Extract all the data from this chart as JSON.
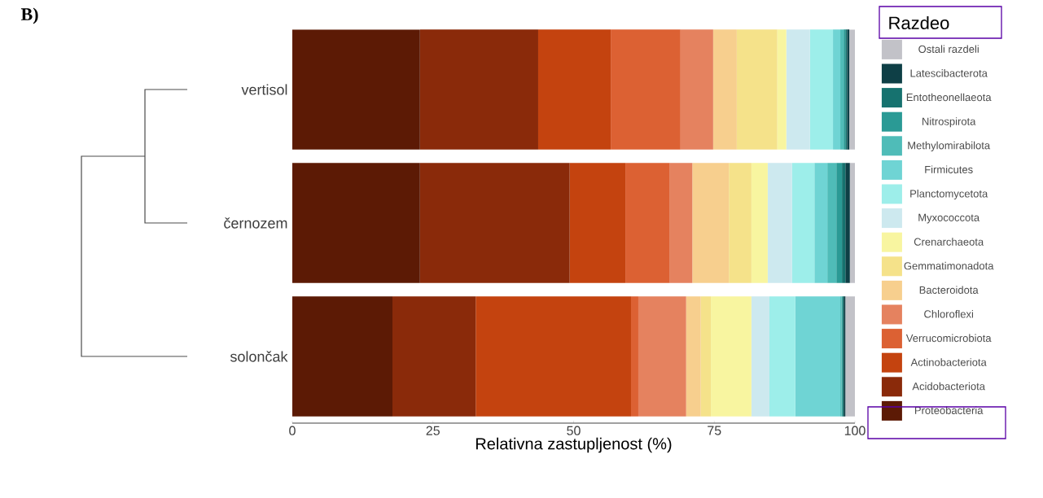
{
  "chart_data": {
    "type": "bar",
    "orientation": "horizontal",
    "stacked": true,
    "categories": [
      "vertisol",
      "černozem",
      "solončak"
    ],
    "xlabel": "Relativna zastupljenost (%)",
    "legend_title": "Razdeo",
    "legend": "right",
    "xlim": [
      0,
      100
    ],
    "xticks": [
      0,
      25,
      50,
      75,
      100
    ],
    "annotations": [
      "B)"
    ],
    "series": [
      {
        "name": "Proteobacteria",
        "color": "#5c1a05",
        "values": [
          22.7,
          22.7,
          17.8
        ]
      },
      {
        "name": "Acidobacteriota",
        "color": "#8a2a0a",
        "values": [
          21.0,
          26.6,
          14.8
        ]
      },
      {
        "name": "Actinobacteriota",
        "color": "#c4430f",
        "values": [
          12.9,
          9.9,
          27.6
        ]
      },
      {
        "name": "Verrucomicrobiota",
        "color": "#dc6133",
        "values": [
          12.4,
          7.9,
          1.3
        ]
      },
      {
        "name": "Chloroflexi",
        "color": "#e5825f",
        "values": [
          5.8,
          4.0,
          8.5
        ]
      },
      {
        "name": "Bacteroidota",
        "color": "#f7cf8e",
        "values": [
          4.2,
          6.5,
          2.6
        ]
      },
      {
        "name": "Gemmatimonadota",
        "color": "#f5e28a",
        "values": [
          7.2,
          4.0,
          1.8
        ]
      },
      {
        "name": "Crenarchaeota",
        "color": "#f8f5a0",
        "values": [
          1.6,
          2.9,
          7.2
        ]
      },
      {
        "name": "Myxococcota",
        "color": "#cde9ef",
        "values": [
          4.2,
          4.3,
          3.2
        ]
      },
      {
        "name": "Planctomycetota",
        "color": "#9deeea",
        "values": [
          4.1,
          4.0,
          4.6
        ]
      },
      {
        "name": "Firmicutes",
        "color": "#6fd4d4",
        "values": [
          1.3,
          2.3,
          8.0
        ]
      },
      {
        "name": "Methylomirabilota",
        "color": "#4fbcb8",
        "values": [
          0.6,
          1.6,
          0.2
        ]
      },
      {
        "name": "Nitrospirota",
        "color": "#2a9a95",
        "values": [
          0.3,
          1.0,
          0.2
        ]
      },
      {
        "name": "Entotheonellaeota",
        "color": "#16726f",
        "values": [
          0.3,
          0.6,
          0.2
        ]
      },
      {
        "name": "Latescibacterota",
        "color": "#0e3f46",
        "values": [
          0.4,
          0.8,
          0.3
        ]
      },
      {
        "name": "Ostali razdeli",
        "color": "#c2c2c8",
        "values": [
          1.0,
          0.9,
          1.7
        ]
      }
    ]
  }
}
